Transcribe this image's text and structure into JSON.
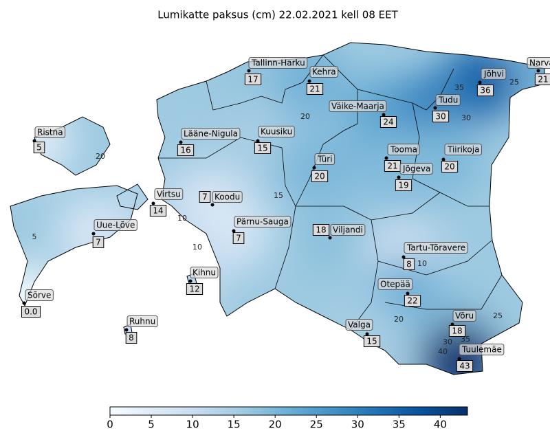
{
  "title": "Lumikatte paksus (cm) 22.02.2021 kell 08 EET",
  "stations": [
    {
      "name": "Tallinn-Harku",
      "value": 17
    },
    {
      "name": "Kehra",
      "value": 21
    },
    {
      "name": "Narva",
      "value": 21
    },
    {
      "name": "Jõhvi",
      "value": 36
    },
    {
      "name": "Väike-Maarja",
      "value": 24
    },
    {
      "name": "Tudu",
      "value": 30
    },
    {
      "name": "Ristna",
      "value": 5
    },
    {
      "name": "Lääne-Nigula",
      "value": 16
    },
    {
      "name": "Kuusiku",
      "value": 15
    },
    {
      "name": "Tooma",
      "value": 21
    },
    {
      "name": "Tiirikoja",
      "value": 20
    },
    {
      "name": "Türi",
      "value": 20
    },
    {
      "name": "Jõgeva",
      "value": 19
    },
    {
      "name": "Virtsu",
      "value": 14
    },
    {
      "name": "Koodu",
      "value": 7
    },
    {
      "name": "Pärnu-Sauga",
      "value": 7
    },
    {
      "name": "Viljandi",
      "value": 18
    },
    {
      "name": "Uue-Lõve",
      "value": 7
    },
    {
      "name": "Tartu-Tõravere",
      "value": 8
    },
    {
      "name": "Kihnu",
      "value": 12
    },
    {
      "name": "Otepää",
      "value": 22
    },
    {
      "name": "Sõrve",
      "value": 0,
      "value_label": "0.0"
    },
    {
      "name": "Võru",
      "value": 18
    },
    {
      "name": "Ruhnu",
      "value": 8
    },
    {
      "name": "Valga",
      "value": 15
    },
    {
      "name": "Tuulemäe",
      "value": 43
    }
  ],
  "contour_labels": [
    35,
    25,
    30,
    20,
    15,
    10,
    10,
    5,
    10,
    20,
    25,
    30,
    35,
    40,
    20
  ],
  "colorbar": {
    "lim": [
      0,
      43.3
    ],
    "ticks": [
      0,
      5,
      10,
      15,
      20,
      25,
      30,
      35,
      40
    ],
    "colormap": [
      "#f7fbff",
      "#deebf7",
      "#c6dbef",
      "#9ecae1",
      "#6baed6",
      "#4292c6",
      "#2171b5",
      "#08519c",
      "#08306b"
    ]
  }
}
